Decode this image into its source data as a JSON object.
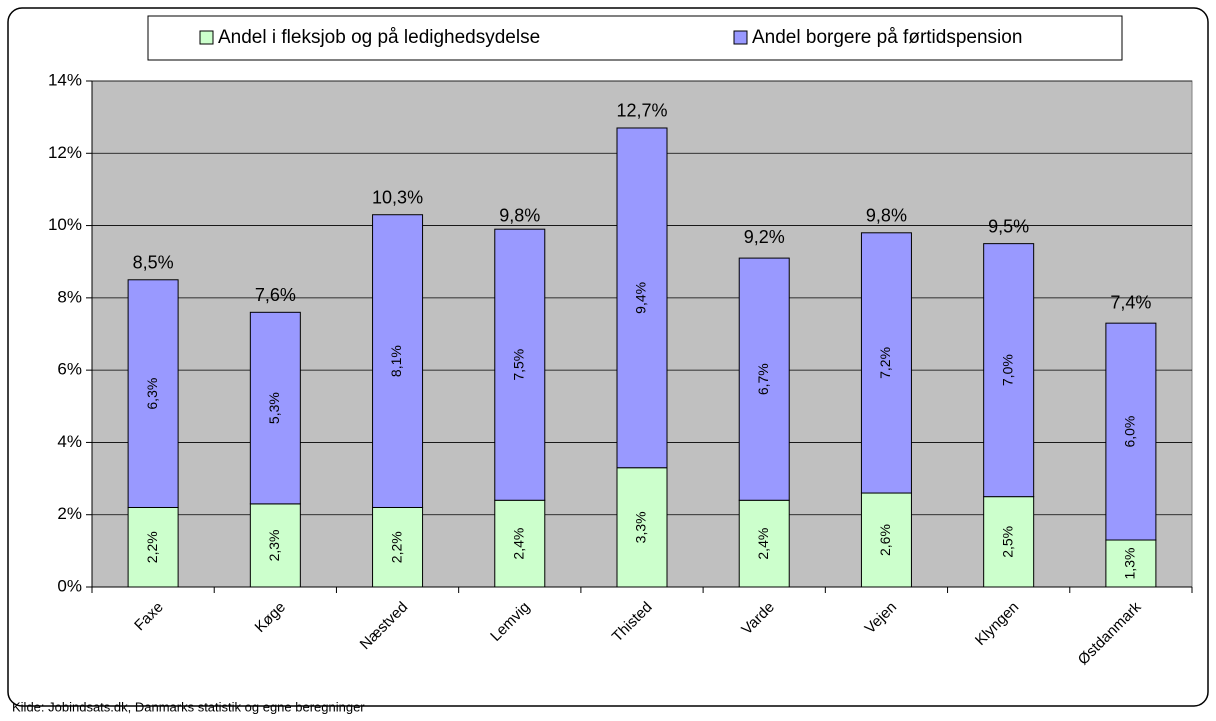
{
  "chart_data": {
    "type": "stacked_bar",
    "categories": [
      "Faxe",
      "Køge",
      "Næstved",
      "Lemvig",
      "Thisted",
      "Varde",
      "Vejen",
      "Klyngen",
      "Østdanmark"
    ],
    "series": [
      {
        "name": "Andel i fleksjob og på ledighedsydelse",
        "color": "#ccffcc",
        "values": [
          2.2,
          2.3,
          2.2,
          2.4,
          3.3,
          2.4,
          2.6,
          2.5,
          1.3
        ],
        "value_labels": [
          "2,2%",
          "2,3%",
          "2,2%",
          "2,4%",
          "3,3%",
          "2,4%",
          "2,6%",
          "2,5%",
          "1,3%"
        ]
      },
      {
        "name": "Andel borgere på førtidspension",
        "color": "#9999ff",
        "values": [
          6.3,
          5.3,
          8.1,
          7.5,
          9.4,
          6.7,
          7.2,
          7.0,
          6.0
        ],
        "value_labels": [
          "6,3%",
          "5,3%",
          "8,1%",
          "7,5%",
          "9,4%",
          "6,7%",
          "7,2%",
          "7,0%",
          "6,0%"
        ]
      }
    ],
    "totals": {
      "values": [
        8.5,
        7.6,
        10.3,
        9.8,
        12.7,
        9.2,
        9.8,
        9.5,
        7.4
      ],
      "value_labels": [
        "8,5%",
        "7,6%",
        "10,3%",
        "9,8%",
        "12,7%",
        "9,2%",
        "9,8%",
        "9,5%",
        "7,4%"
      ]
    },
    "ylim": [
      0,
      14
    ],
    "yticks": [
      {
        "value": 0,
        "label": "0%"
      },
      {
        "value": 2,
        "label": "2%"
      },
      {
        "value": 4,
        "label": "4%"
      },
      {
        "value": 6,
        "label": "6%"
      },
      {
        "value": 8,
        "label": "8%"
      },
      {
        "value": 10,
        "label": "10%"
      },
      {
        "value": 12,
        "label": "12%"
      },
      {
        "value": 14,
        "label": "14%"
      }
    ],
    "grid": true,
    "legend": "top",
    "background": "#c0c0c0",
    "source": "Kilde: Jobindsats.dk, Danmarks statistik og egne beregninger"
  }
}
